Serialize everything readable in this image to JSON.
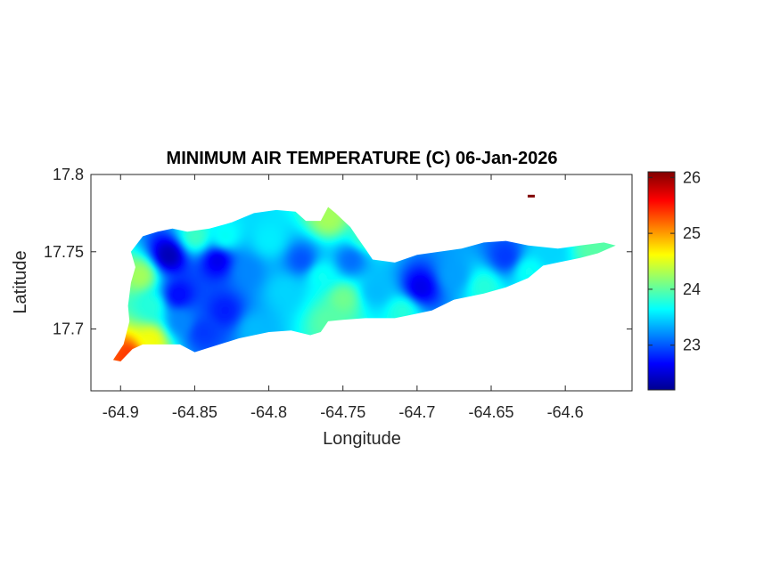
{
  "chart_data": {
    "type": "heatmap",
    "title": "MINIMUM AIR TEMPERATURE (C) 06-Jan-2026",
    "xlabel": "Longitude",
    "ylabel": "Latitude",
    "xlim": [
      -64.92,
      -64.555
    ],
    "ylim": [
      17.66,
      17.8
    ],
    "xticks": [
      -64.9,
      -64.85,
      -64.8,
      -64.75,
      -64.7,
      -64.65,
      -64.6
    ],
    "yticks": [
      17.7,
      17.75,
      17.8
    ],
    "colorbar": {
      "range": [
        22.2,
        26.1
      ],
      "ticks": [
        23,
        24,
        25,
        26
      ],
      "colormap": "jet"
    },
    "outline": [
      [
        -64.9,
        17.679
      ],
      [
        -64.892,
        17.687
      ],
      [
        -64.885,
        17.69
      ],
      [
        -64.86,
        17.69
      ],
      [
        -64.85,
        17.685
      ],
      [
        -64.84,
        17.688
      ],
      [
        -64.82,
        17.694
      ],
      [
        -64.8,
        17.698
      ],
      [
        -64.785,
        17.699
      ],
      [
        -64.772,
        17.696
      ],
      [
        -64.765,
        17.698
      ],
      [
        -64.76,
        17.705
      ],
      [
        -64.75,
        17.706
      ],
      [
        -64.735,
        17.707
      ],
      [
        -64.715,
        17.707
      ],
      [
        -64.705,
        17.709
      ],
      [
        -64.69,
        17.712
      ],
      [
        -64.675,
        17.719
      ],
      [
        -64.655,
        17.723
      ],
      [
        -64.64,
        17.727
      ],
      [
        -64.625,
        17.733
      ],
      [
        -64.615,
        17.741
      ],
      [
        -64.605,
        17.743
      ],
      [
        -64.59,
        17.746
      ],
      [
        -64.578,
        17.749
      ],
      [
        -64.566,
        17.754
      ],
      [
        -64.574,
        17.756
      ],
      [
        -64.59,
        17.754
      ],
      [
        -64.605,
        17.752
      ],
      [
        -64.625,
        17.754
      ],
      [
        -64.64,
        17.757
      ],
      [
        -64.655,
        17.756
      ],
      [
        -64.67,
        17.752
      ],
      [
        -64.685,
        17.75
      ],
      [
        -64.7,
        17.748
      ],
      [
        -64.715,
        17.743
      ],
      [
        -64.73,
        17.745
      ],
      [
        -64.735,
        17.752
      ],
      [
        -64.74,
        17.759
      ],
      [
        -64.745,
        17.766
      ],
      [
        -64.755,
        17.775
      ],
      [
        -64.76,
        17.779
      ],
      [
        -64.765,
        17.77
      ],
      [
        -64.775,
        17.77
      ],
      [
        -64.782,
        17.776
      ],
      [
        -64.795,
        17.777
      ],
      [
        -64.81,
        17.775
      ],
      [
        -64.825,
        17.769
      ],
      [
        -64.84,
        17.765
      ],
      [
        -64.855,
        17.763
      ],
      [
        -64.865,
        17.765
      ],
      [
        -64.875,
        17.763
      ],
      [
        -64.885,
        17.76
      ],
      [
        -64.893,
        17.75
      ],
      [
        -64.89,
        17.74
      ],
      [
        -64.893,
        17.73
      ],
      [
        -64.895,
        17.715
      ],
      [
        -64.894,
        17.705
      ],
      [
        -64.898,
        17.69
      ],
      [
        -64.905,
        17.68
      ]
    ],
    "temperature_points": [
      [
        -64.868,
        17.748,
        22.4
      ],
      [
        -64.862,
        17.722,
        22.7
      ],
      [
        -64.835,
        17.745,
        22.6
      ],
      [
        -64.83,
        17.712,
        22.8
      ],
      [
        -64.845,
        17.698,
        22.9
      ],
      [
        -64.815,
        17.738,
        23.2
      ],
      [
        -64.8,
        17.758,
        23.6
      ],
      [
        -64.79,
        17.725,
        23.5
      ],
      [
        -64.778,
        17.745,
        23.0
      ],
      [
        -64.765,
        17.735,
        23.7
      ],
      [
        -64.745,
        17.745,
        23.1
      ],
      [
        -64.75,
        17.72,
        24.1
      ],
      [
        -64.728,
        17.725,
        23.4
      ],
      [
        -64.698,
        17.727,
        22.6
      ],
      [
        -64.675,
        17.735,
        23.3
      ],
      [
        -64.64,
        17.747,
        22.9
      ],
      [
        -64.61,
        17.75,
        23.5
      ],
      [
        -64.58,
        17.753,
        24.0
      ],
      [
        -64.83,
        17.76,
        23.7
      ],
      [
        -64.887,
        17.735,
        24.3
      ],
      [
        -64.88,
        17.693,
        24.6
      ],
      [
        -64.895,
        17.683,
        25.4
      ],
      [
        -64.76,
        17.772,
        24.3
      ],
      [
        -64.88,
        17.715,
        23.8
      ],
      [
        -64.76,
        17.705,
        24.0
      ],
      [
        -64.71,
        17.712,
        23.8
      ],
      [
        -64.655,
        17.728,
        23.8
      ],
      [
        -64.625,
        17.738,
        23.7
      ],
      [
        -64.85,
        17.76,
        23.9
      ],
      [
        -64.81,
        17.7,
        23.4
      ],
      [
        -64.86,
        17.705,
        23.2
      ],
      [
        -64.735,
        17.76,
        23.9
      ]
    ],
    "extra_patch": {
      "lon": -64.623,
      "lat": 17.786,
      "value": 26.1
    }
  }
}
